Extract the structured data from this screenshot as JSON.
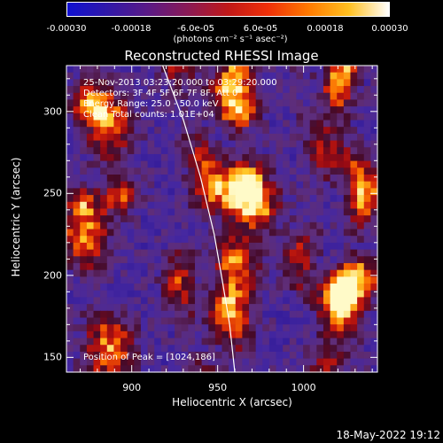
{
  "colorbar": {
    "tick_labels": [
      "-0.00030",
      "-0.00018",
      "-6.0e-05",
      "6.0e-05",
      "0.00018",
      "0.00030"
    ],
    "tick_values": [
      -0.0003,
      -0.00018,
      -6e-05,
      6e-05,
      0.00018,
      0.0003
    ],
    "range": [
      -0.0003,
      0.0003
    ],
    "units": "(photons cm⁻² s⁻¹ asec⁻²)",
    "colors": [
      "#1010d0",
      "#3018a8",
      "#5a1a86",
      "#8a1a55",
      "#c01818",
      "#f03008",
      "#ff7a00",
      "#ffc020",
      "#ffffff"
    ]
  },
  "title": "Reconstructed RHESSI Image",
  "annotations": {
    "time_range": "25-Nov-2013 03:23:20.000 to 03:29:20.000",
    "detectors": "Detectors: 3F 4F 5F 6F 7F 8F, Att 0",
    "energy_range": "Energy Range: 25.0 - 50.0 keV",
    "clean_counts": "Clean    Total counts: 1.01E+04",
    "peak_position": "Position of Peak = [1024,186]"
  },
  "footer_date": "18-May-2022 19:12",
  "chart_data": {
    "type": "heatmap",
    "title": "Reconstructed RHESSI Image",
    "xlabel": "Heliocentric X (arcsec)",
    "ylabel": "Heliocentric Y (arcsec)",
    "xlim": [
      862,
      1043
    ],
    "ylim": [
      141,
      328
    ],
    "x_ticks": [
      900,
      950,
      1000
    ],
    "y_ticks": [
      150,
      200,
      250,
      300
    ],
    "x_tick_labels": [
      "900",
      "950",
      "1000"
    ],
    "y_tick_labels": [
      "150",
      "200",
      "250",
      "300"
    ],
    "peak": [
      1024,
      186
    ],
    "limb_points": [
      [
        918,
        328
      ],
      [
        930,
        295
      ],
      [
        940,
        260
      ],
      [
        948,
        225
      ],
      [
        953,
        195
      ],
      [
        957,
        170
      ],
      [
        960,
        141
      ]
    ],
    "colormap": "RHESSI flux, blue (negative) to white (positive)",
    "value_range": [
      -0.0003,
      0.0003
    ]
  }
}
